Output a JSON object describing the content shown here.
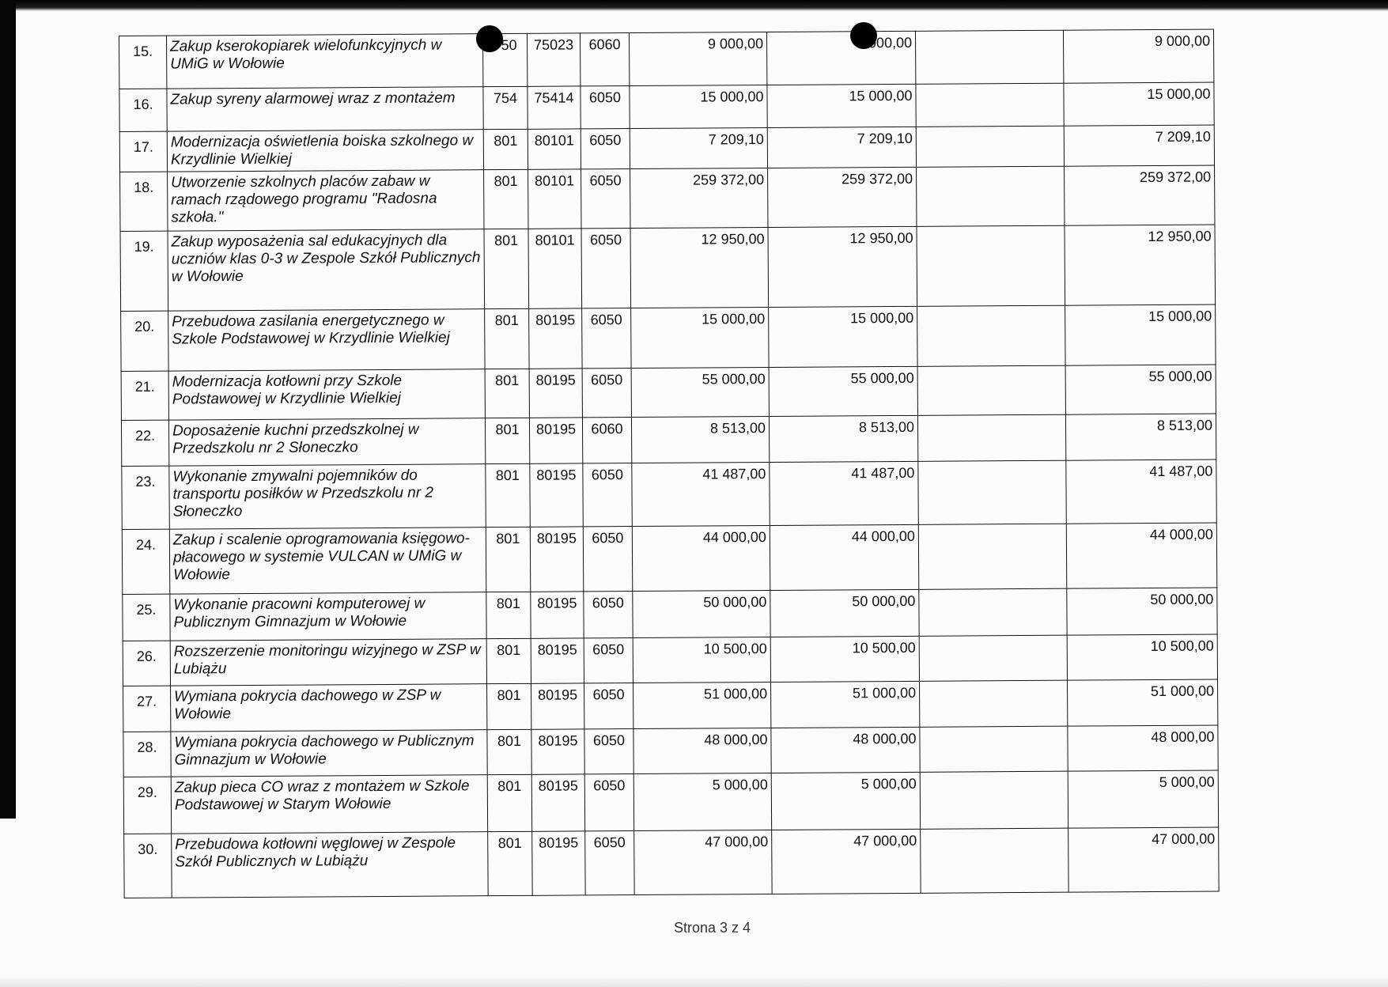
{
  "rows": [
    {
      "no": "15.",
      "desc": "Zakup kserokopiarek wielofunkcyjnych w UMiG w Wołowie",
      "dz": "750",
      "roz": "75023",
      "par": "6060",
      "a1": "9 000,00",
      "a2": "9 000,00",
      "a3": "",
      "a4": "9 000,00"
    },
    {
      "no": "16.",
      "desc": "Zakup syreny alarmowej wraz z montażem",
      "dz": "754",
      "roz": "75414",
      "par": "6050",
      "a1": "15 000,00",
      "a2": "15 000,00",
      "a3": "",
      "a4": "15 000,00"
    },
    {
      "no": "17.",
      "desc": "Modernizacja oświetlenia boiska szkolnego w Krzydlinie Wielkiej",
      "dz": "801",
      "roz": "80101",
      "par": "6050",
      "a1": "7 209,10",
      "a2": "7 209,10",
      "a3": "",
      "a4": "7 209,10"
    },
    {
      "no": "18.",
      "desc": "Utworzenie szkolnych placów zabaw w ramach rządowego programu \"Radosna szkoła.\"",
      "dz": "801",
      "roz": "80101",
      "par": "6050",
      "a1": "259 372,00",
      "a2": "259 372,00",
      "a3": "",
      "a4": "259 372,00"
    },
    {
      "no": "19.",
      "desc": "Zakup wyposażenia sal edukacyjnych dla uczniów klas 0-3 w Zespole Szkół Publicznych w Wołowie",
      "dz": "801",
      "roz": "80101",
      "par": "6050",
      "a1": "12 950,00",
      "a2": "12 950,00",
      "a3": "",
      "a4": "12 950,00"
    },
    {
      "no": "20.",
      "desc": "Przebudowa zasilania energetycznego w Szkole Podstawowej w Krzydlinie Wielkiej",
      "dz": "801",
      "roz": "80195",
      "par": "6050",
      "a1": "15 000,00",
      "a2": "15 000,00",
      "a3": "",
      "a4": "15 000,00"
    },
    {
      "no": "21.",
      "desc": "Modernizacja kotłowni przy Szkole Podstawowej w Krzydlinie Wielkiej",
      "dz": "801",
      "roz": "80195",
      "par": "6050",
      "a1": "55 000,00",
      "a2": "55 000,00",
      "a3": "",
      "a4": "55 000,00"
    },
    {
      "no": "22.",
      "desc": "Doposażenie kuchni przedszkolnej w Przedszkolu nr 2 Słoneczko",
      "dz": "801",
      "roz": "80195",
      "par": "6060",
      "a1": "8 513,00",
      "a2": "8 513,00",
      "a3": "",
      "a4": "8 513,00"
    },
    {
      "no": "23.",
      "desc": "Wykonanie zmywalni pojemników do transportu posiłków w Przedszkolu nr 2 Słoneczko",
      "dz": "801",
      "roz": "80195",
      "par": "6050",
      "a1": "41 487,00",
      "a2": "41 487,00",
      "a3": "",
      "a4": "41 487,00"
    },
    {
      "no": "24.",
      "desc": "Zakup i scalenie oprogramowania księgowo- płacowego w systemie VULCAN w UMiG w Wołowie",
      "dz": "801",
      "roz": "80195",
      "par": "6050",
      "a1": "44 000,00",
      "a2": "44 000,00",
      "a3": "",
      "a4": "44 000,00"
    },
    {
      "no": "25.",
      "desc": "Wykonanie pracowni komputerowej w Publicznym Gimnazjum w Wołowie",
      "dz": "801",
      "roz": "80195",
      "par": "6050",
      "a1": "50 000,00",
      "a2": "50 000,00",
      "a3": "",
      "a4": "50 000,00"
    },
    {
      "no": "26.",
      "desc": "Rozszerzenie monitoringu wizyjnego w ZSP w Lubiążu",
      "dz": "801",
      "roz": "80195",
      "par": "6050",
      "a1": "10 500,00",
      "a2": "10 500,00",
      "a3": "",
      "a4": "10 500,00"
    },
    {
      "no": "27.",
      "desc": "Wymiana pokrycia dachowego w ZSP w Wołowie",
      "dz": "801",
      "roz": "80195",
      "par": "6050",
      "a1": "51 000,00",
      "a2": "51 000,00",
      "a3": "",
      "a4": "51 000,00"
    },
    {
      "no": "28.",
      "desc": "Wymiana pokrycia dachowego w Publicznym Gimnazjum w Wołowie",
      "dz": "801",
      "roz": "80195",
      "par": "6050",
      "a1": "48 000,00",
      "a2": "48 000,00",
      "a3": "",
      "a4": "48 000,00"
    },
    {
      "no": "29.",
      "desc": "Zakup pieca CO wraz z montażem w Szkole Podstawowej w Starym Wołowie",
      "dz": "801",
      "roz": "80195",
      "par": "6050",
      "a1": "5 000,00",
      "a2": "5 000,00",
      "a3": "",
      "a4": "5 000,00"
    },
    {
      "no": "30.",
      "desc": "Przebudowa kotłowni węglowej w Zespole Szkół Publicznych w Lubiążu",
      "dz": "801",
      "roz": "80195",
      "par": "6050",
      "a1": "47 000,00",
      "a2": "47 000,00",
      "a3": "",
      "a4": "47 000,00"
    }
  ],
  "footer": "Strona 3 z 4"
}
